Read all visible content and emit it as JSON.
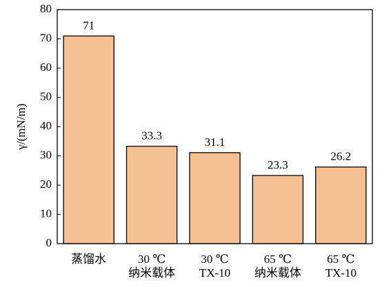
{
  "chart_data": {
    "type": "bar",
    "y_label": "γ/(mN/m)",
    "categories": [
      [
        "蒸馏水"
      ],
      [
        "30 ℃",
        "纳米载体"
      ],
      [
        "30 ℃",
        "TX-10"
      ],
      [
        "65 ℃",
        "纳米载体"
      ],
      [
        "65 ℃",
        "TX-10"
      ]
    ],
    "values": [
      71,
      33.3,
      31.1,
      23.3,
      26.2
    ],
    "color": "#f5c193",
    "ylim": [
      0,
      80
    ],
    "yticks": [
      0,
      10,
      20,
      30,
      40,
      50,
      60,
      70,
      80
    ],
    "grid": false
  }
}
